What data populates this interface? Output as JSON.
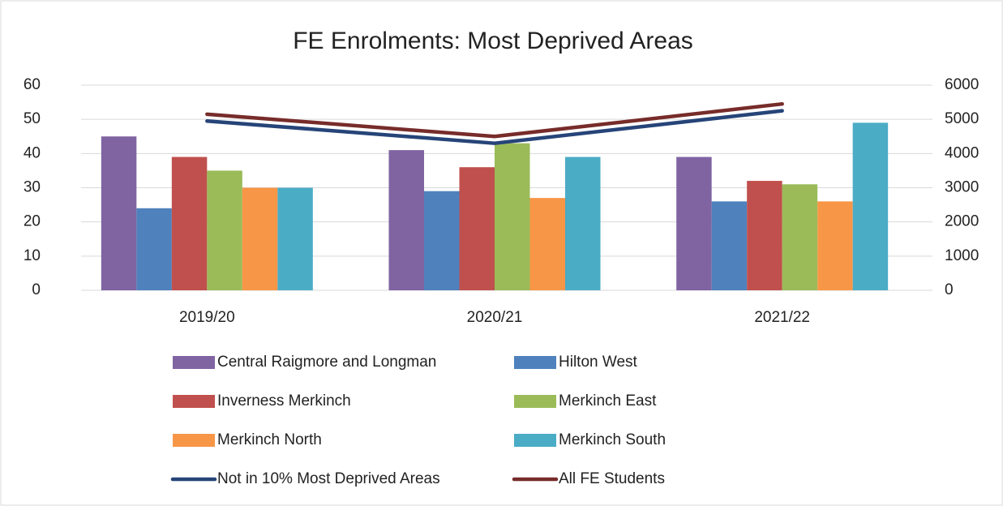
{
  "chart_data": {
    "type": "bar",
    "title": "FE Enrolments: Most Deprived Areas",
    "categories": [
      "2019/20",
      "2020/21",
      "2021/22"
    ],
    "series": [
      {
        "name": "Central Raigmore and Longman",
        "color": "#8064a2",
        "values": [
          45,
          41,
          39
        ]
      },
      {
        "name": "Hilton West",
        "color": "#4f81bd",
        "values": [
          24,
          29,
          26
        ]
      },
      {
        "name": "Inverness Merkinch",
        "color": "#c0504d",
        "values": [
          39,
          36,
          32
        ]
      },
      {
        "name": "Merkinch East",
        "color": "#9bbb59",
        "values": [
          35,
          43,
          31
        ]
      },
      {
        "name": "Merkinch North",
        "color": "#f79646",
        "values": [
          30,
          27,
          26
        ]
      },
      {
        "name": "Merkinch South",
        "color": "#4bacc6",
        "values": [
          30,
          39,
          49
        ]
      },
      {
        "name": "Not in 10% Most Deprived Areas",
        "color": "#264478",
        "type": "line",
        "axis": "y2",
        "values": [
          4950,
          4300,
          5250
        ]
      },
      {
        "name": "All FE Students",
        "color": "#772c2a",
        "type": "line",
        "axis": "y2",
        "values": [
          5150,
          4500,
          5450
        ]
      }
    ],
    "ylim": [
      0,
      60
    ],
    "yticks": [
      0,
      10,
      20,
      30,
      40,
      50,
      60
    ],
    "y2lim": [
      0,
      6000
    ],
    "y2ticks": [
      0,
      1000,
      2000,
      3000,
      4000,
      5000,
      6000
    ],
    "grid": true,
    "legend": "bottom"
  }
}
